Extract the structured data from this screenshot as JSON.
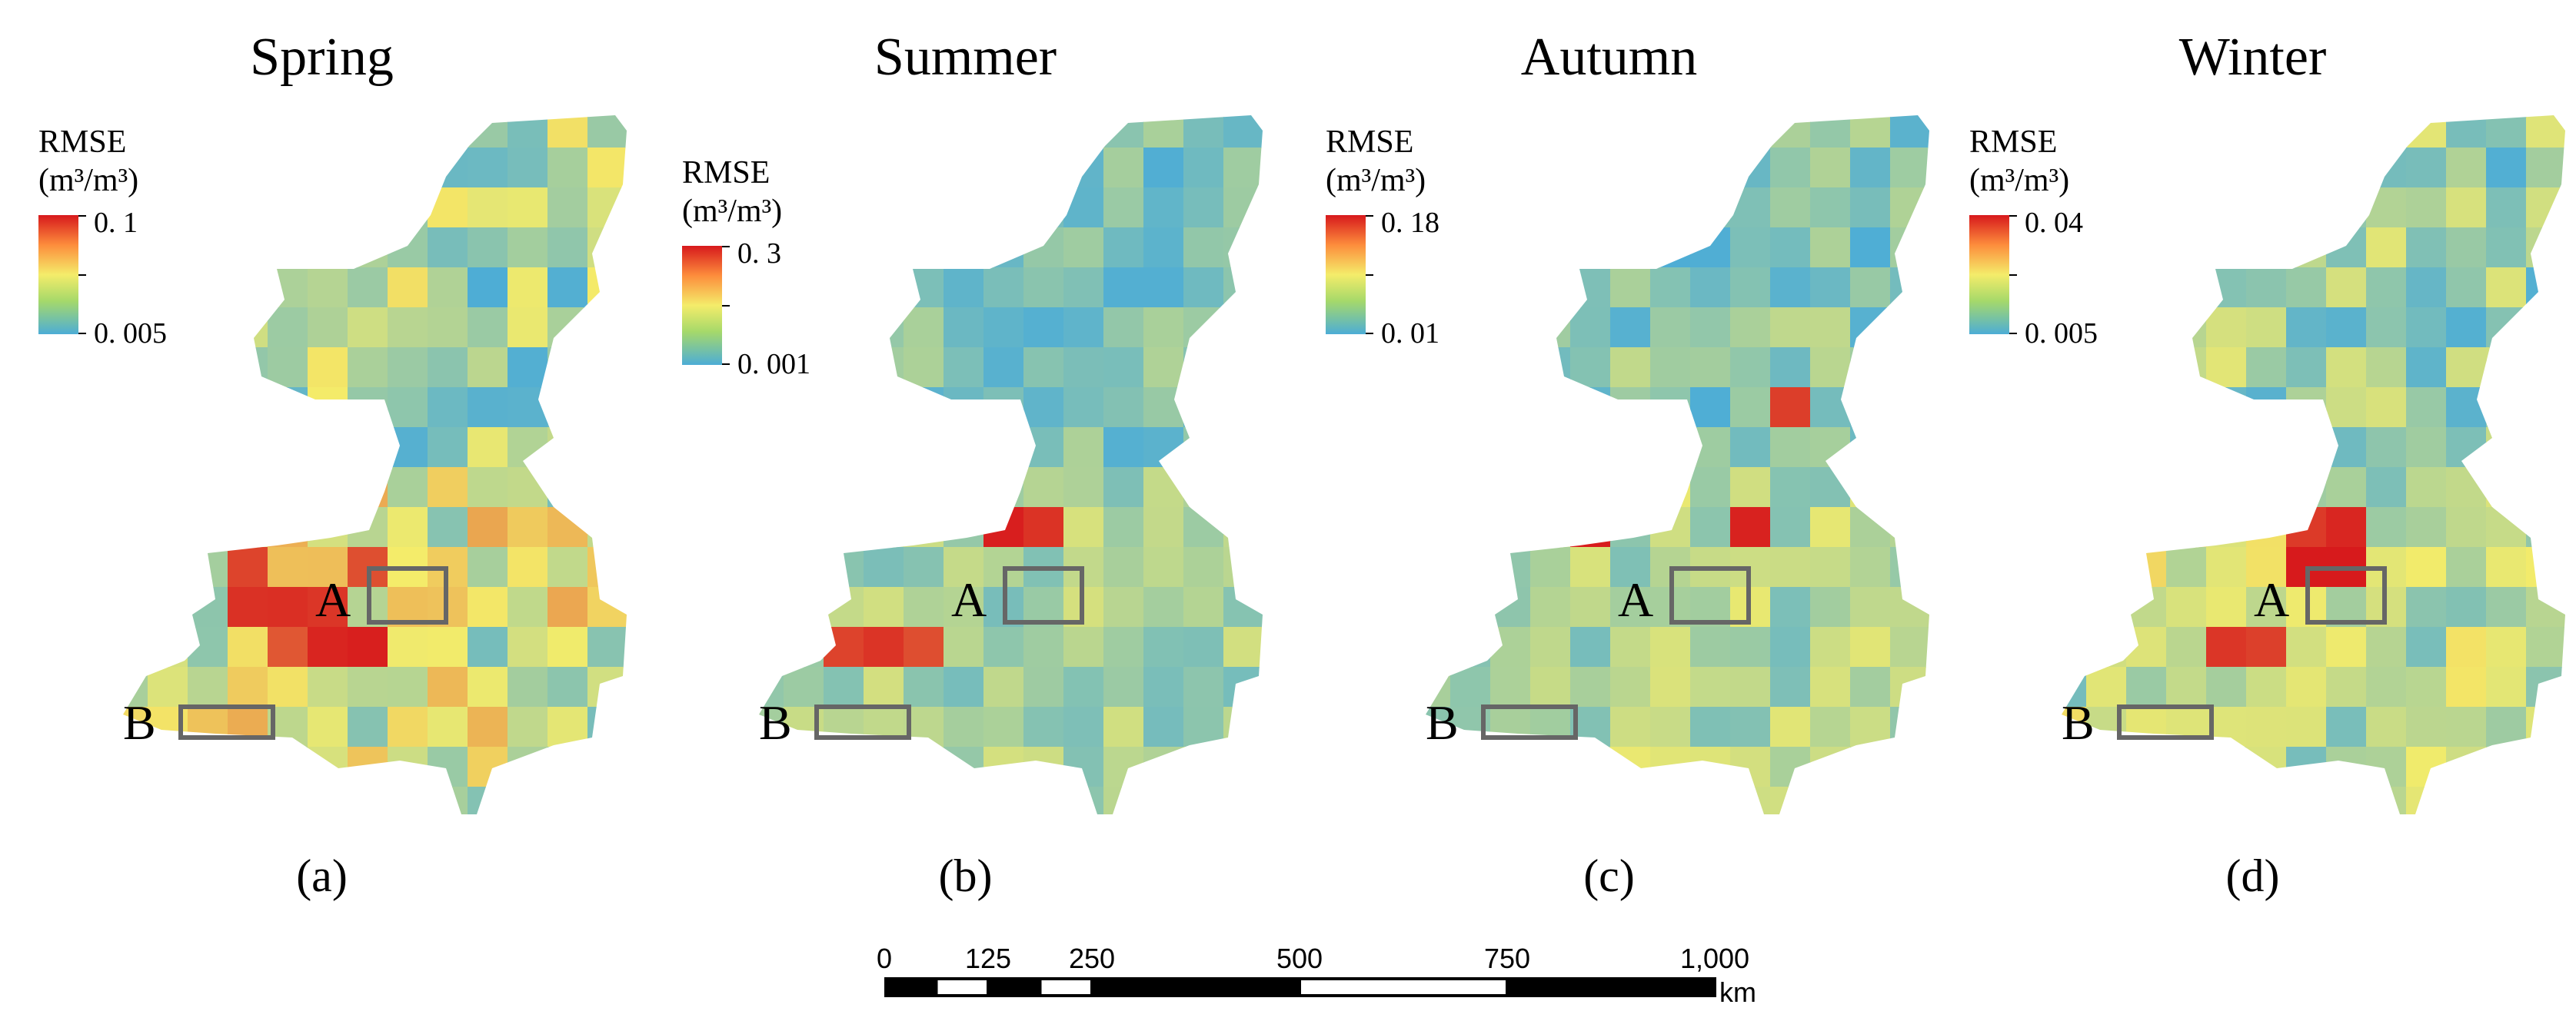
{
  "panels": [
    {
      "title": "Spring",
      "label": "(a)",
      "legend_title_1": "RMSE",
      "legend_title_2": "(m³/m³)",
      "max": "0. 1",
      "min": "0. 005",
      "palette_bias": 0.55,
      "hotspots": [
        [
          3,
          12
        ],
        [
          4,
          12
        ],
        [
          5,
          12
        ],
        [
          3,
          11
        ],
        [
          4,
          13
        ],
        [
          6,
          11
        ],
        [
          5,
          13
        ],
        [
          6,
          13
        ]
      ]
    },
    {
      "title": "Summer",
      "label": "(b)",
      "legend_title_1": "RMSE",
      "legend_title_2": "(m³/m³)",
      "max": "0. 3",
      "min": "0. 001",
      "palette_bias": 0.3,
      "hotspots": [
        [
          6,
          10
        ],
        [
          7,
          10
        ],
        [
          2,
          13
        ],
        [
          3,
          13
        ],
        [
          4,
          13
        ]
      ]
    },
    {
      "title": "Autumn",
      "label": "(c)",
      "legend_title_1": "RMSE",
      "legend_title_2": "(m³/m³)",
      "max": "0. 18",
      "min": "0. 01",
      "palette_bias": 0.35,
      "hotspots": [
        [
          8,
          10
        ],
        [
          4,
          10
        ],
        [
          9,
          7
        ]
      ]
    },
    {
      "title": "Winter",
      "label": "(d)",
      "legend_title_1": "RMSE",
      "legend_title_2": "(m³/m³)",
      "max": "0. 04",
      "min": "0. 005",
      "palette_bias": 0.45,
      "hotspots": [
        [
          6,
          10
        ],
        [
          7,
          10
        ],
        [
          6,
          11
        ],
        [
          7,
          11
        ],
        [
          4,
          13
        ],
        [
          5,
          13
        ]
      ]
    }
  ],
  "boxes": {
    "a_label": "A",
    "b_label": "B"
  },
  "scale": {
    "ticks": [
      {
        "value": 0,
        "label": "0"
      },
      {
        "value": 125,
        "label": "125"
      },
      {
        "value": 250,
        "label": "250"
      },
      {
        "value": 500,
        "label": "500"
      },
      {
        "value": 750,
        "label": "750"
      },
      {
        "value": 1000,
        "label": "1,000"
      }
    ],
    "unit": "km",
    "max": 1000
  },
  "colors": {
    "low": "#4dadd6",
    "mid": "#f4ec6a",
    "high": "#d7191c",
    "box": "#666666"
  }
}
